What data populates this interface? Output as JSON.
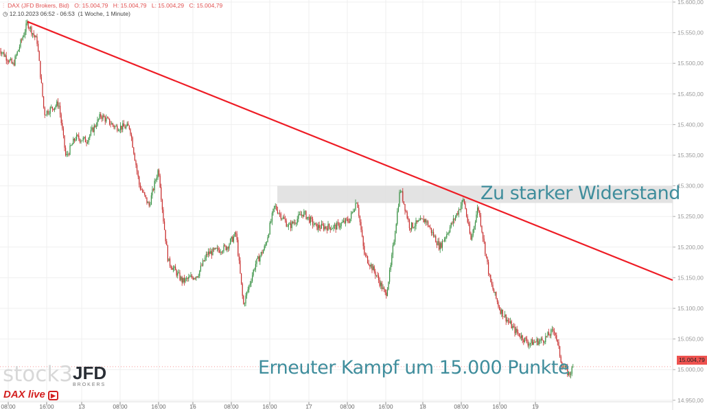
{
  "header": {
    "symbol": "DAX (JFD Brokers, Bid)",
    "open": "O: 15.004,79",
    "high": "H: 15.004,79",
    "low": "L: 15.004,29",
    "close": "C: 15.004,79",
    "time_range": "12.10.2023 06:52 - 06:53",
    "period": "(1 Woche, 1 Minute)"
  },
  "annotations": {
    "resistance": "Zu starker Widerstand",
    "support": "Erneuter Kampf um 15.000 Punkte"
  },
  "logos": {
    "stock3": "stock3",
    "jfd": "JFD",
    "brokers": "BROKERS",
    "daxlive": "DAX live"
  },
  "last_price": "15.004,79",
  "colors": {
    "up": "#2e8b3a",
    "down": "#c62828",
    "trendline": "#ee1c25",
    "annotation": "#3f8d9c",
    "zone": "#e0e0e0",
    "badge": "#ef5350"
  },
  "chart_data": {
    "type": "candlestick",
    "title": "",
    "ylim": [
      14940,
      15600
    ],
    "y_ticks": [
      "15.600,00",
      "15.550,00",
      "15.500,00",
      "15.450,00",
      "15.400,00",
      "15.350,00",
      "15.300,00",
      "15.250,00",
      "15.200,00",
      "15.150,00",
      "15.100,00",
      "15.050,00",
      "15.000,00",
      "14.950,00"
    ],
    "y_tick_values": [
      15600,
      15550,
      15500,
      15450,
      15400,
      15350,
      15300,
      15250,
      15200,
      15150,
      15100,
      15050,
      15000,
      14950
    ],
    "x_ticks": [
      {
        "label": "08:00",
        "day": 12,
        "hour": 8
      },
      {
        "label": "16:00",
        "day": 12,
        "hour": 16
      },
      {
        "label": "13",
        "day": 13,
        "hour": 0
      },
      {
        "label": "08:00",
        "day": 13,
        "hour": 8
      },
      {
        "label": "16:00",
        "day": 13,
        "hour": 16
      },
      {
        "label": "16",
        "day": 16,
        "hour": 0
      },
      {
        "label": "08:00",
        "day": 16,
        "hour": 8
      },
      {
        "label": "16:00",
        "day": 16,
        "hour": 16
      },
      {
        "label": "17",
        "day": 17,
        "hour": 0
      },
      {
        "label": "08:00",
        "day": 17,
        "hour": 8
      },
      {
        "label": "16:00",
        "day": 17,
        "hour": 16
      },
      {
        "label": "18",
        "day": 18,
        "hour": 0
      },
      {
        "label": "08:00",
        "day": 18,
        "hour": 8
      },
      {
        "label": "16:00",
        "day": 18,
        "hour": 16
      },
      {
        "label": "19",
        "day": 19,
        "hour": 0
      }
    ],
    "price_path": [
      [
        12,
        6,
        15525
      ],
      [
        12,
        9,
        15497
      ],
      [
        12,
        12,
        15566
      ],
      [
        12,
        14,
        15536
      ],
      [
        12,
        15.5,
        15418
      ],
      [
        12,
        18.5,
        15435
      ],
      [
        12,
        20,
        15346
      ],
      [
        12,
        22,
        15379
      ],
      [
        13,
        1,
        15374
      ],
      [
        13,
        4,
        15415
      ],
      [
        13,
        7,
        15396
      ],
      [
        13,
        10,
        15396
      ],
      [
        13,
        12,
        15301
      ],
      [
        13,
        14,
        15267
      ],
      [
        13,
        16,
        15329
      ],
      [
        13,
        17,
        15245
      ],
      [
        13,
        18,
        15177
      ],
      [
        13,
        21,
        15144
      ],
      [
        16,
        1,
        15155
      ],
      [
        16,
        3,
        15189
      ],
      [
        16,
        7,
        15200
      ],
      [
        16,
        9,
        15222
      ],
      [
        16,
        10.5,
        15105
      ],
      [
        16,
        13,
        15172
      ],
      [
        16,
        15,
        15200
      ],
      [
        16,
        17,
        15267
      ],
      [
        16,
        20,
        15233
      ],
      [
        16,
        23,
        15256
      ],
      [
        17,
        1.5,
        15233
      ],
      [
        17,
        5.5,
        15233
      ],
      [
        17,
        8.5,
        15245
      ],
      [
        17,
        10,
        15278
      ],
      [
        17,
        11.5,
        15189
      ],
      [
        17,
        14,
        15155
      ],
      [
        17,
        16,
        15121
      ],
      [
        17,
        17,
        15166
      ],
      [
        17,
        19,
        15296
      ],
      [
        17,
        21,
        15233
      ],
      [
        18,
        0.5,
        15245
      ],
      [
        18,
        3.5,
        15200
      ],
      [
        18,
        6.5,
        15245
      ],
      [
        18,
        8.5,
        15278
      ],
      [
        18,
        10,
        15211
      ],
      [
        18,
        11.5,
        15267
      ],
      [
        18,
        14,
        15144
      ],
      [
        18,
        16,
        15099
      ],
      [
        18,
        19,
        15065
      ],
      [
        18,
        22,
        15043
      ],
      [
        19,
        1.5,
        15048
      ],
      [
        19,
        4,
        15065
      ],
      [
        19,
        5.5,
        15009
      ],
      [
        19,
        7,
        14992
      ],
      [
        19,
        8,
        15005
      ]
    ],
    "trendline": {
      "from": [
        12,
        12,
        15568
      ],
      "to": "right edge ~15.145",
      "color": "#ee1c25"
    },
    "resistance_zone": [
      15272,
      15300
    ],
    "last": 15004.79
  }
}
